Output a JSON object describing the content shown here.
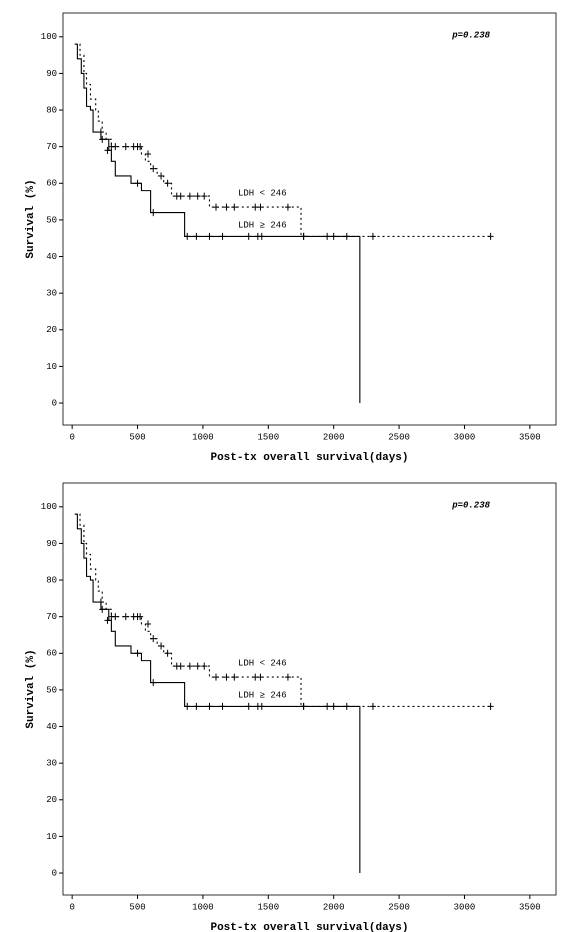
{
  "chart_data": [
    {
      "type": "km",
      "annotation": "p=0.238",
      "xlabel": "Post-tx overall survival(days)",
      "ylabel": "Survival (%)",
      "xlim": [
        -70,
        3700
      ],
      "ylim": [
        -6,
        106.5
      ],
      "xticks": [
        0,
        500,
        1000,
        1500,
        2000,
        2500,
        3000,
        3500
      ],
      "yticks": [
        0,
        10,
        20,
        30,
        40,
        50,
        60,
        70,
        80,
        90,
        100
      ],
      "series": [
        {
          "name": "LDH < 246",
          "color": "#000000",
          "linestyle": "dotted",
          "x": [
            20,
            60,
            90,
            110,
            140,
            180,
            200,
            230,
            260,
            300,
            530,
            560,
            600,
            650,
            700,
            760,
            820,
            1050,
            1750,
            3200
          ],
          "values": [
            98,
            95,
            90,
            87,
            83,
            80,
            77,
            74,
            72,
            70,
            68,
            66,
            64,
            62,
            60,
            56.5,
            56.5,
            53.5,
            45.5,
            45.5
          ],
          "censored": {
            "x": [
              220,
              300,
              330,
              410,
              470,
              500,
              520,
              580,
              620,
              680,
              730,
              800,
              830,
              900,
              960,
              1010,
              1100,
              1180,
              1240,
              1400,
              1440,
              1650,
              1770,
              1950,
              2300,
              3200
            ],
            "values": [
              74,
              70,
              70,
              70,
              70,
              70,
              70,
              68,
              64,
              62,
              60,
              56.5,
              56.5,
              56.5,
              56.5,
              56.5,
              53.5,
              53.5,
              53.5,
              53.5,
              53.5,
              53.5,
              45.5,
              45.5,
              45.5,
              45.5
            ]
          }
        },
        {
          "name": "LDH ≥ 246",
          "color": "#000000",
          "linestyle": "solid",
          "x": [
            20,
            40,
            70,
            90,
            110,
            140,
            160,
            220,
            280,
            300,
            330,
            450,
            530,
            600,
            860,
            2200,
            2200
          ],
          "values": [
            98,
            94,
            90,
            86,
            81,
            80,
            74,
            72,
            69,
            66,
            62,
            60,
            58,
            52,
            45.5,
            45.5,
            0
          ],
          "censored": {
            "x": [
              230,
              270,
              500,
              620,
              880,
              950,
              1050,
              1150,
              1350,
              1420,
              1450,
              1770,
              2000,
              2100
            ],
            "values": [
              72,
              69,
              60,
              52,
              45.5,
              45.5,
              45.5,
              45.5,
              45.5,
              45.5,
              45.5,
              45.5,
              45.5,
              45.5
            ]
          }
        }
      ]
    },
    {
      "type": "km",
      "annotation": "p=0.238",
      "xlabel": "Post-tx overall survival(days)",
      "ylabel": "Survival (%)",
      "xlim": [
        -70,
        3700
      ],
      "ylim": [
        -6,
        106.5
      ],
      "xticks": [
        0,
        500,
        1000,
        1500,
        2000,
        2500,
        3000,
        3500
      ],
      "yticks": [
        0,
        10,
        20,
        30,
        40,
        50,
        60,
        70,
        80,
        90,
        100
      ],
      "series": [
        {
          "name": "LDH < 246",
          "color": "#000000",
          "linestyle": "dotted",
          "x": [
            20,
            60,
            90,
            110,
            140,
            180,
            200,
            230,
            260,
            300,
            530,
            560,
            600,
            650,
            700,
            760,
            820,
            1050,
            1750,
            3200
          ],
          "values": [
            98,
            95,
            90,
            87,
            83,
            80,
            77,
            74,
            72,
            70,
            68,
            66,
            64,
            62,
            60,
            56.5,
            56.5,
            53.5,
            45.5,
            45.5
          ],
          "censored": {
            "x": [
              220,
              300,
              330,
              410,
              470,
              500,
              520,
              580,
              620,
              680,
              730,
              800,
              830,
              900,
              960,
              1010,
              1100,
              1180,
              1240,
              1400,
              1440,
              1650,
              1770,
              1950,
              2300,
              3200
            ],
            "values": [
              74,
              70,
              70,
              70,
              70,
              70,
              70,
              68,
              64,
              62,
              60,
              56.5,
              56.5,
              56.5,
              56.5,
              56.5,
              53.5,
              53.5,
              53.5,
              53.5,
              53.5,
              53.5,
              45.5,
              45.5,
              45.5,
              45.5
            ]
          }
        },
        {
          "name": "LDH ≥ 246",
          "color": "#000000",
          "linestyle": "solid",
          "x": [
            20,
            40,
            70,
            90,
            110,
            140,
            160,
            220,
            280,
            300,
            330,
            450,
            530,
            600,
            860,
            2200,
            2200
          ],
          "values": [
            98,
            94,
            90,
            86,
            81,
            80,
            74,
            72,
            69,
            66,
            62,
            60,
            58,
            52,
            45.5,
            45.5,
            0
          ],
          "censored": {
            "x": [
              230,
              270,
              500,
              620,
              880,
              950,
              1050,
              1150,
              1350,
              1420,
              1450,
              1770,
              2000,
              2100
            ],
            "values": [
              72,
              69,
              60,
              52,
              45.5,
              45.5,
              45.5,
              45.5,
              45.5,
              45.5,
              45.5,
              45.5,
              45.5,
              45.5
            ]
          }
        }
      ]
    }
  ]
}
